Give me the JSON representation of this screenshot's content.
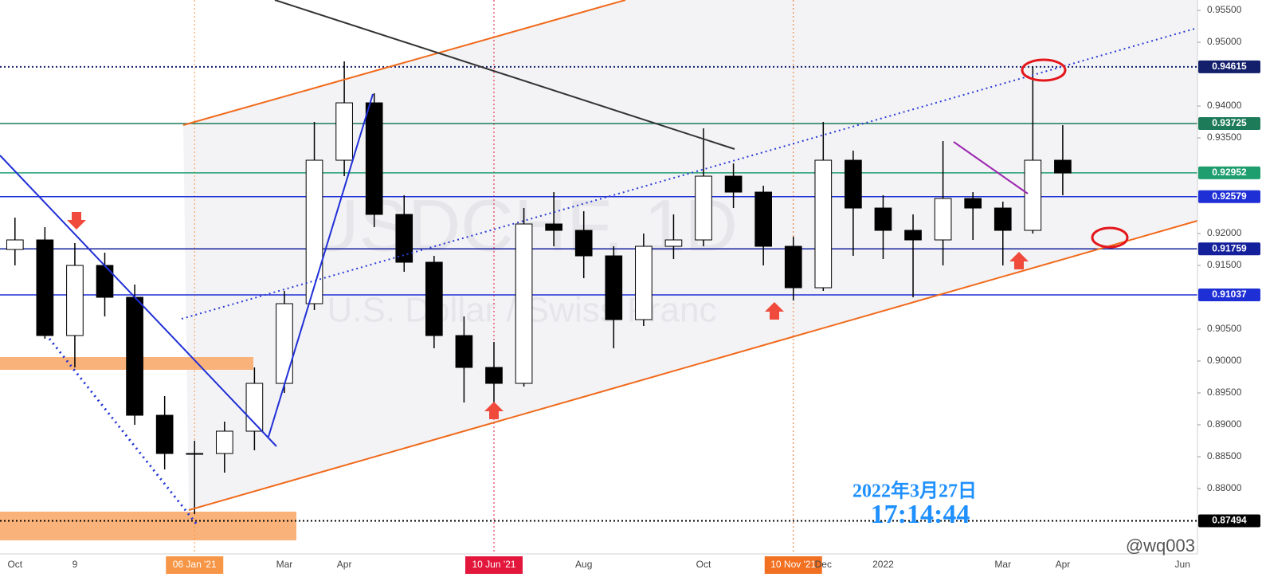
{
  "chart_data": {
    "type": "candlestick",
    "title": "USDCHF, 1D",
    "subtitle": "U.S. Dollar / Swiss Franc",
    "date_stamp": "2022年3月27日",
    "time_stamp": "17:14:44",
    "watermark": "@wq003",
    "categories": [
      "Oct",
      null,
      "9",
      null,
      null,
      null,
      "06 Jan '21",
      null,
      null,
      "Mar",
      null,
      "Apr",
      null,
      null,
      null,
      null,
      "10 Jun '21",
      null,
      null,
      "Aug",
      null,
      null,
      null,
      "Oct",
      null,
      null,
      "10 Nov '21",
      "Dec",
      null,
      "2022",
      null,
      null,
      null,
      "Mar",
      null,
      "Apr",
      null,
      null,
      null,
      "Jun"
    ],
    "open": [
      0.9175,
      0.919,
      0.904,
      0.915,
      0.91,
      0.8915,
      0.8855,
      0.8855,
      0.889,
      0.8965,
      0.909,
      0.9315,
      0.9405,
      0.923,
      0.9155,
      0.904,
      0.899,
      0.8965,
      0.9215,
      0.9205,
      0.9165,
      0.9065,
      0.918,
      0.919,
      0.929,
      0.9265,
      0.918,
      0.9115,
      0.9315,
      0.924,
      0.9205,
      0.919,
      0.9255,
      0.924,
      0.9205,
      0.9315,
      null,
      null,
      null,
      null
    ],
    "high": [
      0.9225,
      0.921,
      0.9185,
      0.917,
      0.912,
      0.8945,
      0.8875,
      0.8905,
      0.899,
      0.911,
      0.9375,
      0.947,
      0.942,
      0.926,
      0.9165,
      0.907,
      0.903,
      0.924,
      0.9265,
      0.9235,
      0.918,
      0.92,
      0.923,
      0.9365,
      0.931,
      0.9275,
      0.9195,
      0.9375,
      0.933,
      0.926,
      0.923,
      0.9345,
      0.9265,
      0.925,
      0.9462,
      0.937,
      null,
      null,
      null,
      null
    ],
    "low": [
      0.915,
      0.9035,
      0.899,
      0.907,
      0.89,
      0.883,
      0.876,
      0.8825,
      0.886,
      0.895,
      0.908,
      0.929,
      0.921,
      0.914,
      0.902,
      0.8935,
      0.8925,
      0.896,
      0.918,
      0.913,
      0.902,
      0.9055,
      0.916,
      0.918,
      0.924,
      0.915,
      0.9095,
      0.911,
      0.9165,
      0.916,
      0.91,
      0.915,
      0.919,
      0.915,
      0.92,
      0.926,
      null,
      null,
      null,
      null
    ],
    "close": [
      0.919,
      0.904,
      0.915,
      0.91,
      0.8915,
      0.8855,
      0.8855,
      0.889,
      0.8965,
      0.909,
      0.9315,
      0.9405,
      0.923,
      0.9155,
      0.904,
      0.899,
      0.8965,
      0.9215,
      0.9205,
      0.9165,
      0.9065,
      0.918,
      0.919,
      0.929,
      0.9265,
      0.918,
      0.9115,
      0.9315,
      0.924,
      0.9205,
      0.919,
      0.9255,
      0.924,
      0.9205,
      0.9315,
      0.9295,
      null,
      null,
      null,
      null
    ],
    "up_color": "#ffffff",
    "down_color": "#000000",
    "ylim": [
      0.86975,
      0.95663
    ],
    "yticks": [
      {
        "value": 0.955,
        "label": "0.95500"
      },
      {
        "value": 0.95,
        "label": "0.95000"
      },
      {
        "value": 0.94,
        "label": "0.94000"
      },
      {
        "value": 0.935,
        "label": "0.93500"
      },
      {
        "value": 0.92,
        "label": "0.92000"
      },
      {
        "value": 0.915,
        "label": "0.91500"
      },
      {
        "value": 0.905,
        "label": "0.90500"
      },
      {
        "value": 0.9,
        "label": "0.90000"
      },
      {
        "value": 0.895,
        "label": "0.89500"
      },
      {
        "value": 0.89,
        "label": "0.89000"
      },
      {
        "value": 0.885,
        "label": "0.88500"
      },
      {
        "value": 0.88,
        "label": "0.88000"
      }
    ],
    "levels": [
      {
        "value": 0.94615,
        "color": "#131f6b",
        "style": "dotted"
      },
      {
        "value": 0.93725,
        "color": "#1e7b5a",
        "style": "solid"
      },
      {
        "value": 0.92952,
        "color": "#1e9e6f",
        "style": "solid"
      },
      {
        "value": 0.92579,
        "color": "#1f2fd6",
        "style": "solid"
      },
      {
        "value": 0.91759,
        "color": "#131f9b",
        "style": "solid"
      },
      {
        "value": 0.91037,
        "color": "#1f2fd6",
        "style": "solid"
      },
      {
        "value": 0.87494,
        "color": "#000000",
        "style": "dotted"
      }
    ],
    "x_highlights": {
      "06 Jan '21": "#f79646",
      "10 Jun '21": "#e3163b",
      "10 Nov '21": "#f27021"
    }
  }
}
